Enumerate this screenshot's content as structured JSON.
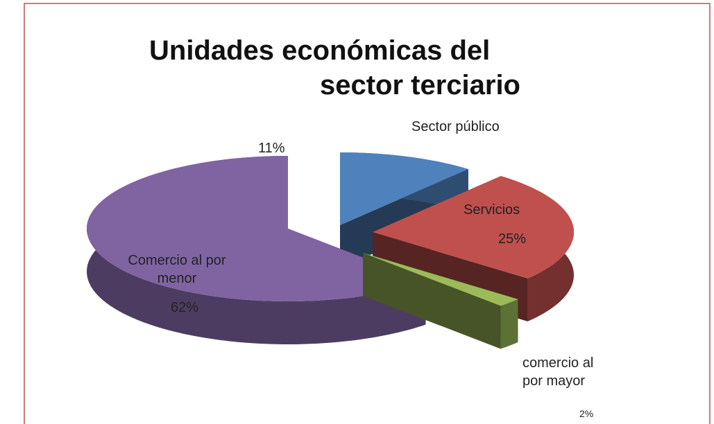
{
  "chart_data": {
    "type": "pie",
    "title": "Unidades económicas del sector terciario",
    "categories": [
      "Sector público",
      "Servicios",
      "comercio al por mayor",
      "Comercio al por menor"
    ],
    "values": [
      11,
      25,
      2,
      62
    ],
    "value_labels": [
      "11%",
      "25%",
      "2%",
      "62%"
    ],
    "colors": [
      "#4f81bd",
      "#c0504d",
      "#9bbb59",
      "#8064a2"
    ]
  }
}
